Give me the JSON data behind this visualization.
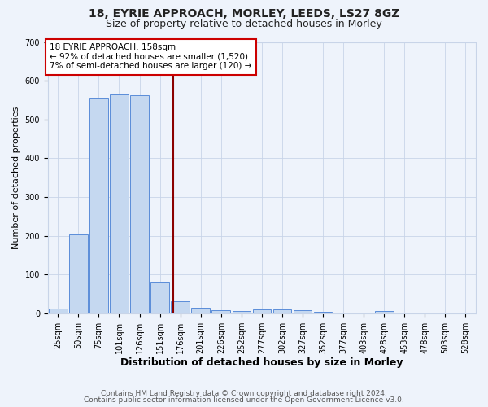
{
  "title1": "18, EYRIE APPROACH, MORLEY, LEEDS, LS27 8GZ",
  "title2": "Size of property relative to detached houses in Morley",
  "xlabel": "Distribution of detached houses by size in Morley",
  "ylabel": "Number of detached properties",
  "categories": [
    "25sqm",
    "50sqm",
    "75sqm",
    "101sqm",
    "126sqm",
    "151sqm",
    "176sqm",
    "201sqm",
    "226sqm",
    "252sqm",
    "277sqm",
    "302sqm",
    "327sqm",
    "352sqm",
    "377sqm",
    "403sqm",
    "428sqm",
    "453sqm",
    "478sqm",
    "503sqm",
    "528sqm"
  ],
  "values": [
    12,
    204,
    555,
    565,
    562,
    80,
    30,
    14,
    8,
    5,
    10,
    10,
    7,
    4,
    0,
    0,
    5,
    0,
    0,
    0,
    0
  ],
  "bar_color": "#c5d8f0",
  "bar_edge_color": "#5b8dd9",
  "annotation_text1": "18 EYRIE APPROACH: 158sqm",
  "annotation_text2": "← 92% of detached houses are smaller (1,520)",
  "annotation_text3": "7% of semi-detached houses are larger (120) →",
  "annotation_box_color": "#ffffff",
  "annotation_edge_color": "#cc0000",
  "red_line_color": "#8b0000",
  "ylim": [
    0,
    700
  ],
  "yticks": [
    0,
    100,
    200,
    300,
    400,
    500,
    600,
    700
  ],
  "footer1": "Contains HM Land Registry data © Crown copyright and database right 2024.",
  "footer2": "Contains public sector information licensed under the Open Government Licence v3.0.",
  "bg_color": "#eef3fb",
  "plot_bg_color": "#eef3fb",
  "grid_color": "#c8d4e8",
  "title1_fontsize": 10,
  "title2_fontsize": 9,
  "xlabel_fontsize": 9,
  "ylabel_fontsize": 8,
  "tick_fontsize": 7,
  "annotation_fontsize": 7.5,
  "footer_fontsize": 6.5
}
